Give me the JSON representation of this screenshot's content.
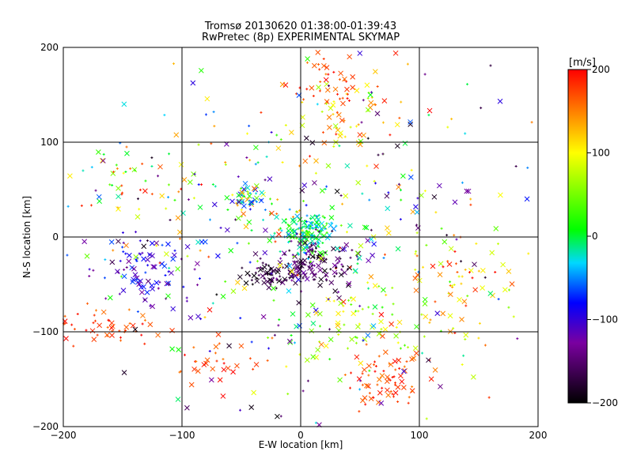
{
  "chart_data": {
    "type": "scatter",
    "title": "Tromsø 20130620 01:38:00-01:39:43",
    "subtitle": "RwPretec (8p) EXPERIMENTAL SKYMAP",
    "xlabel": "E-W location [km]",
    "ylabel": "N-S location [km]",
    "xlim": [
      -200,
      200
    ],
    "ylim": [
      -200,
      200
    ],
    "x_ticks": [
      -200,
      -100,
      0,
      100,
      200
    ],
    "y_ticks": [
      -200,
      -100,
      0,
      100,
      200
    ],
    "x_tick_labels": [
      "−200",
      "−100",
      "0",
      "100",
      "200"
    ],
    "y_tick_labels": [
      "−200",
      "−100",
      "0",
      "100",
      "200"
    ],
    "grid": true,
    "colorbar": {
      "label": "[m/s]",
      "range": [
        -200,
        200
      ],
      "ticks": [
        200,
        100,
        0,
        -100,
        -200
      ],
      "tick_labels": [
        "200",
        "100",
        "0",
        "−100",
        "−200"
      ],
      "colormap": [
        "#000000",
        "#7a00a0",
        "#0000ff",
        "#00d8ff",
        "#00ff00",
        "#ffff00",
        "#ff0000"
      ]
    },
    "markers": {
      "symbols": [
        "x",
        "+"
      ],
      "note_color_by": "velocity"
    },
    "clusters": [
      {
        "cx": 5,
        "cy": 5,
        "sx": 12,
        "sy": 12,
        "n": 140,
        "vmin": -50,
        "vmax": 40
      },
      {
        "cx": 10,
        "cy": -30,
        "sx": 15,
        "sy": 12,
        "n": 120,
        "vmin": -200,
        "vmax": -120
      },
      {
        "cx": -25,
        "cy": -40,
        "sx": 12,
        "sy": 8,
        "n": 60,
        "vmin": -200,
        "vmax": -150
      },
      {
        "cx": -45,
        "cy": 40,
        "sx": 8,
        "sy": 8,
        "n": 50,
        "vmin": -100,
        "vmax": 150
      },
      {
        "cx": -130,
        "cy": -35,
        "sx": 20,
        "sy": 18,
        "n": 90,
        "vmin": -150,
        "vmax": -60
      },
      {
        "cx": -160,
        "cy": -95,
        "sx": 20,
        "sy": 10,
        "n": 50,
        "vmin": 150,
        "vmax": 200
      },
      {
        "cx": 70,
        "cy": -150,
        "sx": 18,
        "sy": 18,
        "n": 70,
        "vmin": 150,
        "vmax": 200
      },
      {
        "cx": 50,
        "cy": -100,
        "sx": 25,
        "sy": 20,
        "n": 60,
        "vmin": 20,
        "vmax": 120
      },
      {
        "cx": 40,
        "cy": 130,
        "sx": 25,
        "sy": 25,
        "n": 70,
        "vmin": 60,
        "vmax": 200
      },
      {
        "cx": 20,
        "cy": 170,
        "sx": 15,
        "sy": 20,
        "n": 40,
        "vmin": 150,
        "vmax": 200
      },
      {
        "cx": -70,
        "cy": -130,
        "sx": 15,
        "sy": 15,
        "n": 30,
        "vmin": 150,
        "vmax": 200
      },
      {
        "cx": 140,
        "cy": -60,
        "sx": 30,
        "sy": 30,
        "n": 70,
        "vmin": 50,
        "vmax": 200
      },
      {
        "cx": -150,
        "cy": 60,
        "sx": 25,
        "sy": 25,
        "n": 40,
        "vmin": -50,
        "vmax": 200
      },
      {
        "cx": 0,
        "cy": 0,
        "sx": 90,
        "sy": 90,
        "n": 420,
        "vmin": -200,
        "vmax": 200
      }
    ]
  }
}
